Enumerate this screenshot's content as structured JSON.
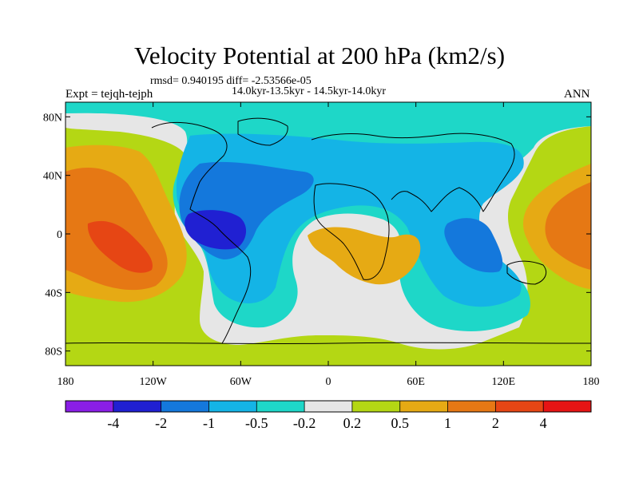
{
  "header": {
    "title": "Velocity Potential at 200 hPa (km2/s)",
    "stats": "rmsd= 0.940195 diff= -2.53566e-05",
    "period": "14.0kyr-13.5kyr - 14.5kyr-14.0kyr",
    "experiment": "Expt = tejqh-tejph",
    "season": "ANN"
  },
  "chart_data": {
    "type": "heatmap",
    "title": "Velocity Potential at 200 hPa (km2/s)",
    "projection": "cylindrical equidistant",
    "x_range": [
      -180,
      180
    ],
    "y_range": [
      -90,
      90
    ],
    "x_ticks": [
      {
        "value": -180,
        "label": "180"
      },
      {
        "value": -120,
        "label": "120W"
      },
      {
        "value": -60,
        "label": "60W"
      },
      {
        "value": 0,
        "label": "0"
      },
      {
        "value": 60,
        "label": "60E"
      },
      {
        "value": 120,
        "label": "120E"
      },
      {
        "value": 180,
        "label": "180"
      }
    ],
    "y_ticks": [
      {
        "value": 80,
        "label": "80N"
      },
      {
        "value": 40,
        "label": "40N"
      },
      {
        "value": 0,
        "label": "0"
      },
      {
        "value": -40,
        "label": "40S"
      },
      {
        "value": -80,
        "label": "80S"
      }
    ],
    "colorbar": {
      "levels": [
        "-4",
        "-2",
        "-1",
        "-0.5",
        "-0.2",
        "0.2",
        "0.5",
        "1",
        "2",
        "4"
      ],
      "colors": [
        "#8a1ee6",
        "#2020d2",
        "#1478dc",
        "#14b4e6",
        "#1ed7c8",
        "#e6e6e6",
        "#b4d714",
        "#e6aa14",
        "#e67814",
        "#e64614",
        "#e61414"
      ]
    },
    "features": [
      {
        "name": "negative center over tropical South America",
        "lon": -82,
        "lat": 4,
        "value_range": "-4 to -2"
      },
      {
        "name": "negative lobe over Indian Ocean / Maritime Continent",
        "lon": 80,
        "lat": -10,
        "value_range": "-1 to -0.5"
      },
      {
        "name": "positive center over central Pacific",
        "lon": -150,
        "lat": -5,
        "value_range": "1 to 2"
      },
      {
        "name": "positive lobe over western Pacific",
        "lon": 160,
        "lat": 5,
        "value_range": "1 to 2"
      },
      {
        "name": "positive lobe over southern Africa",
        "lon": 15,
        "lat": -20,
        "value_range": "0.5 to 1"
      }
    ]
  }
}
